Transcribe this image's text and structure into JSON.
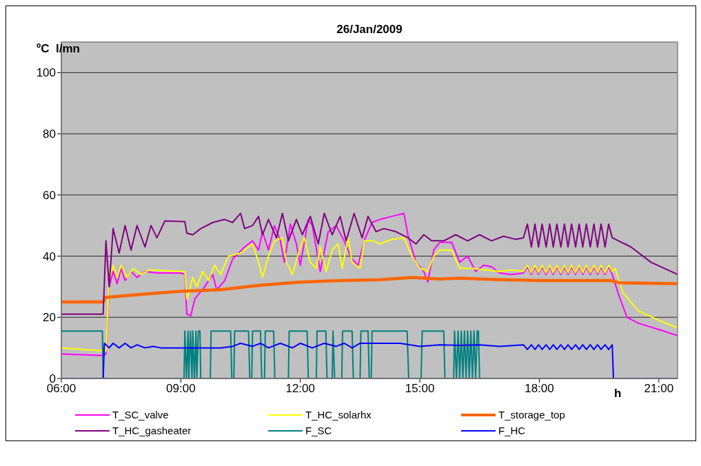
{
  "chart_data": {
    "type": "line",
    "title": "26/Jan/2009",
    "xlabel": "h",
    "ylabel": "ºC  l/mn",
    "xlim": [
      6,
      21.47
    ],
    "xticks": [
      {
        "value": 6,
        "label": "06:00"
      },
      {
        "value": 9,
        "label": "09:00"
      },
      {
        "value": 12,
        "label": "12:00"
      },
      {
        "value": 15,
        "label": "15:00"
      },
      {
        "value": 18,
        "label": "18:00"
      },
      {
        "value": 21,
        "label": "21:00"
      }
    ],
    "ylim": [
      0,
      110
    ],
    "yticks": [
      0,
      20,
      40,
      60,
      80,
      100
    ],
    "grid": "y",
    "legend": "bottom",
    "line_style": "solid",
    "series": [
      {
        "name": "T_SC_valve",
        "color": "#ff00ff",
        "x": [
          6,
          7.05,
          7.12,
          7.2,
          7.3,
          7.4,
          7.5,
          7.6,
          7.75,
          7.9,
          8.1,
          8.4,
          9.0,
          9.1,
          9.15,
          9.25,
          9.35,
          9.6,
          9.8,
          9.9,
          10.1,
          10.3,
          10.6,
          10.8,
          10.95,
          11.05,
          11.2,
          11.35,
          11.5,
          11.6,
          11.75,
          11.9,
          12.0,
          12.2,
          12.3,
          12.5,
          12.7,
          12.9,
          13.1,
          13.3,
          13.45,
          13.6,
          13.8,
          14.0,
          14.3,
          14.6,
          14.7,
          14.9,
          15.1,
          15.2,
          15.35,
          15.5,
          15.8,
          16.0,
          16.2,
          16.4,
          16.6,
          16.8,
          17.0,
          17.3,
          17.6,
          17.7,
          17.8,
          17.89,
          17.98,
          18.07,
          18.17,
          18.26,
          18.35,
          18.44,
          18.54,
          18.63,
          18.72,
          18.81,
          18.91,
          19.0,
          19.09,
          19.18,
          19.28,
          19.37,
          19.46,
          19.55,
          19.65,
          19.74,
          19.83,
          20.0,
          20.2,
          20.5,
          21.0,
          21.47
        ],
        "values": [
          8,
          7.5,
          8,
          30,
          35,
          31,
          36,
          32,
          35,
          33,
          35,
          34.5,
          34.5,
          34,
          21,
          20.5,
          26,
          30,
          34,
          29,
          32,
          39,
          43,
          45,
          42,
          48,
          42,
          50,
          45,
          38,
          50.5,
          44,
          37,
          52,
          50,
          35,
          48,
          50,
          45,
          39,
          37,
          45,
          51,
          52,
          53,
          54,
          47,
          38,
          35,
          31.5,
          42,
          44.5,
          44.5,
          38,
          40,
          35,
          37,
          36.5,
          34.5,
          34,
          34.5,
          36.5,
          34,
          36.5,
          34,
          36.5,
          34,
          36.5,
          34,
          36.5,
          34,
          36.5,
          34,
          36.5,
          34,
          36.5,
          34,
          36.5,
          34,
          36.5,
          34,
          36.5,
          34,
          36.5,
          34,
          27,
          20,
          18,
          16,
          14
        ]
      },
      {
        "name": "T_HC_solarhx",
        "color": "#ffff00",
        "x": [
          6,
          7.05,
          7.12,
          7.2,
          7.3,
          7.4,
          7.5,
          7.65,
          7.8,
          8.0,
          8.2,
          9.0,
          9.1,
          9.15,
          9.2,
          9.3,
          9.4,
          9.55,
          9.7,
          9.85,
          10.0,
          10.2,
          10.5,
          10.8,
          10.95,
          11.05,
          11.2,
          11.35,
          11.55,
          11.65,
          11.8,
          12.0,
          12.1,
          12.25,
          12.4,
          12.5,
          12.65,
          12.8,
          12.95,
          13.05,
          13.2,
          13.3,
          13.5,
          13.6,
          13.8,
          14.0,
          14.3,
          14.6,
          14.8,
          15.0,
          15.2,
          15.35,
          15.5,
          15.8,
          16.0,
          16.3,
          16.6,
          17.0,
          17.3,
          17.6,
          17.7,
          17.8,
          17.89,
          17.98,
          18.07,
          18.17,
          18.26,
          18.35,
          18.44,
          18.54,
          18.63,
          18.72,
          18.81,
          18.91,
          19.0,
          19.09,
          19.18,
          19.28,
          19.37,
          19.46,
          19.55,
          19.65,
          19.74,
          19.83,
          19.9,
          20.1,
          20.5,
          21.0,
          21.47
        ],
        "values": [
          10,
          9,
          9,
          32,
          37,
          33,
          37,
          33,
          36,
          34,
          35.5,
          35,
          35,
          26,
          28,
          33,
          30,
          35,
          32,
          37,
          34,
          40,
          41,
          44,
          38,
          33,
          40,
          45,
          46,
          38,
          34,
          43,
          46,
          38,
          36,
          43,
          35,
          42,
          44,
          36,
          46,
          38,
          36,
          45,
          45,
          44,
          45.5,
          46,
          40,
          36,
          35,
          40,
          42,
          42,
          36,
          36,
          35.5,
          35,
          35.5,
          35,
          37,
          34.5,
          37,
          34.5,
          37,
          34.5,
          37,
          34.5,
          37,
          34.5,
          37,
          34.5,
          37,
          34.5,
          37,
          34.5,
          37,
          34.5,
          37,
          34.5,
          37,
          34.5,
          37,
          35,
          36,
          28,
          22,
          19,
          16.5
        ]
      },
      {
        "name": "T_storage_top",
        "color": "#ff6600",
        "x": [
          6,
          7.05,
          7.1,
          8,
          9,
          10,
          11,
          12,
          13,
          14,
          14.8,
          15.5,
          16,
          17,
          18,
          19,
          19.8,
          20,
          21.47
        ],
        "values": [
          25,
          25,
          26.5,
          27.5,
          28.5,
          29,
          30.5,
          31.5,
          32,
          32.3,
          33,
          32.5,
          32.8,
          32.3,
          32,
          32,
          32,
          31.3,
          31
        ]
      },
      {
        "name": "T_HC_gasheater",
        "color": "#800080",
        "x": [
          6,
          7.05,
          7.12,
          7.2,
          7.3,
          7.45,
          7.6,
          7.75,
          7.9,
          8.1,
          8.25,
          8.4,
          8.6,
          9.1,
          9.15,
          9.3,
          9.5,
          9.8,
          10.1,
          10.3,
          10.5,
          10.6,
          10.8,
          10.95,
          11.05,
          11.2,
          11.4,
          11.55,
          11.7,
          11.9,
          12.05,
          12.25,
          12.45,
          12.6,
          12.8,
          13.0,
          13.15,
          13.35,
          13.55,
          13.7,
          13.9,
          14.1,
          14.4,
          14.7,
          14.9,
          15.1,
          15.3,
          15.6,
          15.9,
          16.2,
          16.5,
          16.8,
          17.1,
          17.4,
          17.6,
          17.7,
          17.8,
          17.89,
          17.98,
          18.07,
          18.17,
          18.26,
          18.35,
          18.44,
          18.54,
          18.63,
          18.72,
          18.81,
          18.91,
          19.0,
          19.09,
          19.18,
          19.28,
          19.37,
          19.46,
          19.55,
          19.65,
          19.74,
          19.83,
          20.3,
          20.8,
          21.47
        ],
        "values": [
          21,
          21,
          45,
          30,
          49,
          41,
          50,
          42,
          50,
          43,
          50,
          46,
          51.5,
          51.3,
          47.5,
          47,
          49,
          51,
          52,
          51,
          54,
          49,
          50,
          53,
          47,
          52,
          46,
          54,
          45,
          52,
          47,
          53,
          44,
          54,
          47,
          53,
          45,
          54,
          46,
          53,
          48,
          49,
          48,
          46,
          44,
          47,
          45,
          45,
          47,
          45,
          47,
          45,
          46.5,
          45.5,
          46,
          50.5,
          43,
          50.5,
          43,
          50.5,
          43,
          50.5,
          43,
          50.5,
          43,
          50.5,
          43,
          50.5,
          43,
          50.5,
          43,
          50.5,
          43,
          50.5,
          43,
          50.5,
          43,
          50.5,
          46,
          43,
          38,
          34
        ]
      },
      {
        "name": "F_SC",
        "color": "#008080",
        "x": [
          6,
          7.03,
          7.05,
          9.08,
          9.1,
          9.14,
          9.18,
          9.2,
          9.24,
          9.28,
          9.3,
          9.34,
          9.38,
          9.4,
          9.44,
          9.48,
          9.5,
          9.74,
          9.76,
          10.25,
          10.28,
          10.33,
          10.35,
          10.7,
          10.73,
          10.78,
          10.8,
          11.0,
          11.03,
          11.1,
          11.12,
          11.33,
          11.36,
          11.7,
          11.72,
          12.17,
          12.2,
          12.4,
          12.42,
          12.64,
          12.67,
          12.8,
          12.82,
          12.86,
          13.04,
          13.06,
          13.3,
          13.33,
          13.5,
          13.52,
          13.7,
          13.73,
          13.78,
          13.8,
          14.68,
          14.72,
          15.03,
          15.06,
          15.6,
          15.63,
          15.85,
          15.87,
          15.92,
          15.96,
          16.0,
          16.04,
          16.08,
          16.12,
          16.16,
          16.2,
          16.24,
          16.28,
          16.32,
          16.36,
          16.4,
          16.44,
          16.47,
          16.5,
          21.47
        ],
        "values": [
          15.5,
          15.5,
          0,
          0,
          15.5,
          0,
          15.5,
          0,
          15.5,
          0,
          15.5,
          0,
          15.5,
          0,
          15.5,
          15.5,
          0,
          0,
          15.5,
          15.5,
          0,
          0,
          15.5,
          15.5,
          0,
          0,
          15.5,
          15.5,
          0,
          0,
          15.5,
          15.5,
          0,
          0,
          15.5,
          15.5,
          0,
          0,
          15.5,
          15.5,
          0,
          0,
          15.5,
          0,
          0,
          15.5,
          15.5,
          0,
          0,
          15.5,
          15.5,
          0,
          0,
          15.5,
          15.5,
          0,
          0,
          15.5,
          15.5,
          0,
          0,
          15.5,
          0,
          15.5,
          0,
          15.5,
          0,
          15.5,
          0,
          15.5,
          0,
          15.5,
          0,
          15.5,
          0,
          15.5,
          15.5,
          0,
          0
        ]
      },
      {
        "name": "F_HC",
        "color": "#0000ff",
        "x": [
          6,
          7.05,
          7.08,
          7.2,
          7.3,
          7.45,
          7.6,
          7.75,
          7.9,
          8.1,
          8.3,
          8.5,
          9.0,
          10.0,
          10.3,
          10.5,
          10.8,
          11.0,
          11.2,
          11.5,
          11.8,
          12.0,
          12.3,
          12.6,
          12.9,
          13.1,
          13.3,
          13.5,
          14.5,
          15.0,
          15.5,
          16.0,
          16.5,
          17.0,
          17.6,
          17.7,
          17.8,
          17.89,
          17.98,
          18.07,
          18.17,
          18.26,
          18.35,
          18.44,
          18.54,
          18.63,
          18.72,
          18.81,
          18.91,
          19.0,
          19.09,
          19.18,
          19.28,
          19.37,
          19.46,
          19.55,
          19.65,
          19.74,
          19.83,
          19.86,
          21.47
        ],
        "values": [
          0,
          0,
          11.5,
          10,
          11.5,
          10,
          11.5,
          10,
          11,
          10,
          10.5,
          10,
          10,
          10,
          10.5,
          11.5,
          10.5,
          11.5,
          10,
          11.5,
          10,
          11.5,
          10,
          11.5,
          10.5,
          11.5,
          10,
          11.5,
          11.5,
          10.5,
          11,
          10.8,
          11,
          10.5,
          11,
          9.5,
          11,
          9.5,
          11,
          9.5,
          11,
          9.5,
          11,
          9.5,
          11,
          9.5,
          11,
          9.5,
          11,
          9.5,
          11,
          9.5,
          11,
          9.5,
          11,
          9.5,
          11,
          9.5,
          11,
          0,
          0
        ]
      }
    ]
  }
}
